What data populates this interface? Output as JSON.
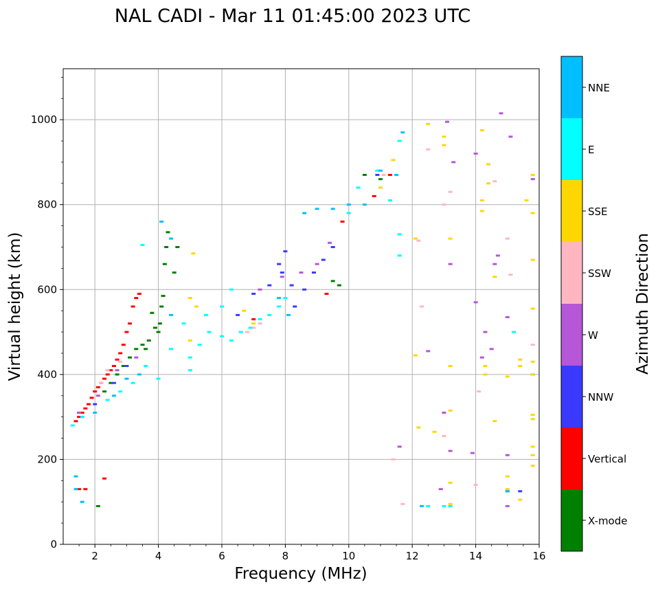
{
  "chart_data": {
    "type": "scatter",
    "title": "NAL CADI - Mar 11 01:45:00 2023 UTC",
    "xlabel": "Frequency (MHz)",
    "ylabel": "Virtual height (km)",
    "xlim": [
      1,
      16
    ],
    "ylim": [
      0,
      1120
    ],
    "xticks": [
      2,
      4,
      6,
      8,
      10,
      12,
      14,
      16
    ],
    "yticks": [
      0,
      200,
      400,
      600,
      800,
      1000
    ],
    "grid": true,
    "colorbar": {
      "label": "Azimuth Direction",
      "categories": [
        {
          "name": "X-mode",
          "color": "#008000"
        },
        {
          "name": "Vertical",
          "color": "#ff0000"
        },
        {
          "name": "NNW",
          "color": "#3a3aff"
        },
        {
          "name": "W",
          "color": "#b557d6"
        },
        {
          "name": "SSW",
          "color": "#ffb6c1"
        },
        {
          "name": "SSE",
          "color": "#ffd700"
        },
        {
          "name": "E",
          "color": "#00ffff"
        },
        {
          "name": "NNE",
          "color": "#00bfff"
        }
      ]
    },
    "series": [
      {
        "name": "X-mode",
        "points": [
          [
            2.3,
            360
          ],
          [
            2.5,
            380
          ],
          [
            2.7,
            400
          ],
          [
            2.9,
            420
          ],
          [
            3.1,
            440
          ],
          [
            3.3,
            460
          ],
          [
            3.5,
            470
          ],
          [
            3.7,
            480
          ],
          [
            3.9,
            510
          ],
          [
            4.05,
            520
          ],
          [
            4.1,
            560
          ],
          [
            4.15,
            585
          ],
          [
            4.2,
            660
          ],
          [
            4.25,
            700
          ],
          [
            4.3,
            735
          ],
          [
            4.5,
            640
          ],
          [
            4.6,
            700
          ],
          [
            3.8,
            545
          ],
          [
            4.0,
            500
          ],
          [
            3.6,
            460
          ],
          [
            2.1,
            90
          ],
          [
            9.5,
            620
          ],
          [
            9.7,
            610
          ],
          [
            10.5,
            870
          ],
          [
            11.0,
            860
          ],
          [
            1.5,
            310
          ]
        ]
      },
      {
        "name": "Vertical",
        "points": [
          [
            1.4,
            290
          ],
          [
            1.5,
            300
          ],
          [
            1.6,
            310
          ],
          [
            1.7,
            320
          ],
          [
            1.8,
            330
          ],
          [
            1.9,
            345
          ],
          [
            2.0,
            360
          ],
          [
            2.1,
            370
          ],
          [
            2.2,
            380
          ],
          [
            2.3,
            390
          ],
          [
            2.4,
            400
          ],
          [
            2.5,
            410
          ],
          [
            2.6,
            420
          ],
          [
            2.7,
            435
          ],
          [
            2.8,
            450
          ],
          [
            2.9,
            470
          ],
          [
            3.0,
            500
          ],
          [
            3.1,
            520
          ],
          [
            3.2,
            560
          ],
          [
            3.3,
            580
          ],
          [
            3.4,
            590
          ],
          [
            1.5,
            130
          ],
          [
            1.7,
            130
          ],
          [
            2.3,
            155
          ],
          [
            7.0,
            530
          ],
          [
            9.3,
            590
          ],
          [
            9.8,
            760
          ],
          [
            10.8,
            820
          ],
          [
            11.3,
            870
          ]
        ]
      },
      {
        "name": "NNW",
        "points": [
          [
            1.6,
            300
          ],
          [
            2.0,
            330
          ],
          [
            2.6,
            380
          ],
          [
            3.0,
            420
          ],
          [
            6.5,
            540
          ],
          [
            7.0,
            590
          ],
          [
            7.5,
            610
          ],
          [
            7.8,
            660
          ],
          [
            8.0,
            690
          ],
          [
            8.3,
            560
          ],
          [
            8.6,
            600
          ],
          [
            8.9,
            640
          ],
          [
            9.2,
            670
          ],
          [
            9.5,
            700
          ],
          [
            8.2,
            610
          ],
          [
            7.9,
            640
          ],
          [
            15.0,
            125
          ],
          [
            15.4,
            125
          ],
          [
            10.9,
            870
          ]
        ]
      },
      {
        "name": "W",
        "points": [
          [
            1.5,
            310
          ],
          [
            2.1,
            350
          ],
          [
            2.7,
            410
          ],
          [
            3.3,
            440
          ],
          [
            7.2,
            600
          ],
          [
            7.9,
            630
          ],
          [
            8.5,
            640
          ],
          [
            9.0,
            660
          ],
          [
            9.4,
            710
          ],
          [
            11.6,
            230
          ],
          [
            12.5,
            455
          ],
          [
            13.0,
            310
          ],
          [
            13.2,
            220
          ],
          [
            13.2,
            660
          ],
          [
            13.3,
            900
          ],
          [
            14.0,
            920
          ],
          [
            14.2,
            440
          ],
          [
            14.3,
            500
          ],
          [
            14.5,
            460
          ],
          [
            14.6,
            660
          ],
          [
            14.7,
            680
          ],
          [
            15.0,
            535
          ],
          [
            15.0,
            210
          ],
          [
            15.0,
            90
          ],
          [
            15.1,
            960
          ],
          [
            14.8,
            1015
          ],
          [
            13.1,
            995
          ],
          [
            15.8,
            400
          ],
          [
            15.8,
            860
          ],
          [
            12.9,
            130
          ],
          [
            13.9,
            215
          ],
          [
            14.0,
            570
          ]
        ]
      },
      {
        "name": "SSW",
        "points": [
          [
            2.2,
            380
          ],
          [
            2.4,
            410
          ],
          [
            2.8,
            430
          ],
          [
            6.8,
            500
          ],
          [
            7.0,
            510
          ],
          [
            7.2,
            520
          ],
          [
            11.1,
            870
          ],
          [
            12.5,
            930
          ],
          [
            12.3,
            560
          ],
          [
            13.0,
            800
          ],
          [
            13.2,
            830
          ],
          [
            14.6,
            855
          ],
          [
            15.0,
            720
          ],
          [
            15.1,
            635
          ],
          [
            14.1,
            360
          ],
          [
            14.0,
            140
          ],
          [
            15.8,
            470
          ],
          [
            12.2,
            715
          ],
          [
            11.7,
            95
          ],
          [
            13.0,
            255
          ],
          [
            11.4,
            200
          ]
        ]
      },
      {
        "name": "SSE",
        "points": [
          [
            5.0,
            580
          ],
          [
            5.2,
            560
          ],
          [
            5.0,
            480
          ],
          [
            5.1,
            685
          ],
          [
            7.0,
            520
          ],
          [
            6.7,
            550
          ],
          [
            11.4,
            905
          ],
          [
            11.0,
            840
          ],
          [
            12.1,
            720
          ],
          [
            12.1,
            445
          ],
          [
            12.2,
            275
          ],
          [
            12.5,
            990
          ],
          [
            13.0,
            960
          ],
          [
            13.0,
            940
          ],
          [
            13.2,
            720
          ],
          [
            13.2,
            420
          ],
          [
            13.2,
            315
          ],
          [
            13.2,
            145
          ],
          [
            13.2,
            95
          ],
          [
            12.7,
            265
          ],
          [
            14.2,
            975
          ],
          [
            14.4,
            895
          ],
          [
            14.4,
            850
          ],
          [
            14.2,
            810
          ],
          [
            14.2,
            785
          ],
          [
            14.3,
            400
          ],
          [
            14.3,
            420
          ],
          [
            14.6,
            630
          ],
          [
            14.6,
            290
          ],
          [
            15.0,
            395
          ],
          [
            15.0,
            130
          ],
          [
            15.0,
            160
          ],
          [
            15.4,
            435
          ],
          [
            15.4,
            420
          ],
          [
            15.6,
            810
          ],
          [
            15.8,
            870
          ],
          [
            15.8,
            780
          ],
          [
            15.8,
            670
          ],
          [
            15.8,
            555
          ],
          [
            15.8,
            430
          ],
          [
            15.8,
            400
          ],
          [
            15.8,
            305
          ],
          [
            15.8,
            295
          ],
          [
            15.8,
            230
          ],
          [
            15.8,
            210
          ],
          [
            15.8,
            185
          ],
          [
            15.4,
            105
          ],
          [
            12.5,
            90
          ]
        ]
      },
      {
        "name": "E",
        "points": [
          [
            1.3,
            280
          ],
          [
            1.6,
            300
          ],
          [
            2.4,
            340
          ],
          [
            2.8,
            360
          ],
          [
            3.2,
            380
          ],
          [
            3.6,
            420
          ],
          [
            4.0,
            390
          ],
          [
            4.4,
            460
          ],
          [
            4.8,
            520
          ],
          [
            5.0,
            440
          ],
          [
            5.3,
            470
          ],
          [
            5.6,
            500
          ],
          [
            6.0,
            490
          ],
          [
            6.3,
            480
          ],
          [
            6.6,
            500
          ],
          [
            6.9,
            510
          ],
          [
            7.2,
            530
          ],
          [
            7.5,
            540
          ],
          [
            7.8,
            560
          ],
          [
            8.0,
            580
          ],
          [
            6.0,
            560
          ],
          [
            5.5,
            540
          ],
          [
            6.3,
            600
          ],
          [
            5.0,
            410
          ],
          [
            10.0,
            780
          ],
          [
            10.3,
            840
          ],
          [
            10.9,
            880
          ],
          [
            11.3,
            810
          ],
          [
            11.6,
            950
          ],
          [
            11.6,
            730
          ],
          [
            11.6,
            680
          ],
          [
            12.5,
            90
          ],
          [
            13.0,
            90
          ],
          [
            13.2,
            90
          ],
          [
            15.2,
            500
          ],
          [
            3.5,
            705
          ]
        ]
      },
      {
        "name": "NNE",
        "points": [
          [
            1.4,
            130
          ],
          [
            1.4,
            160
          ],
          [
            1.6,
            100
          ],
          [
            2.0,
            310
          ],
          [
            2.6,
            350
          ],
          [
            3.0,
            390
          ],
          [
            3.4,
            400
          ],
          [
            4.4,
            540
          ],
          [
            7.8,
            580
          ],
          [
            8.1,
            540
          ],
          [
            8.6,
            780
          ],
          [
            9.0,
            790
          ],
          [
            9.5,
            790
          ],
          [
            10.0,
            800
          ],
          [
            10.5,
            800
          ],
          [
            11.0,
            880
          ],
          [
            11.5,
            870
          ],
          [
            11.7,
            970
          ],
          [
            4.4,
            720
          ],
          [
            4.1,
            760
          ],
          [
            15.0,
            125
          ],
          [
            12.3,
            90
          ]
        ]
      }
    ]
  }
}
